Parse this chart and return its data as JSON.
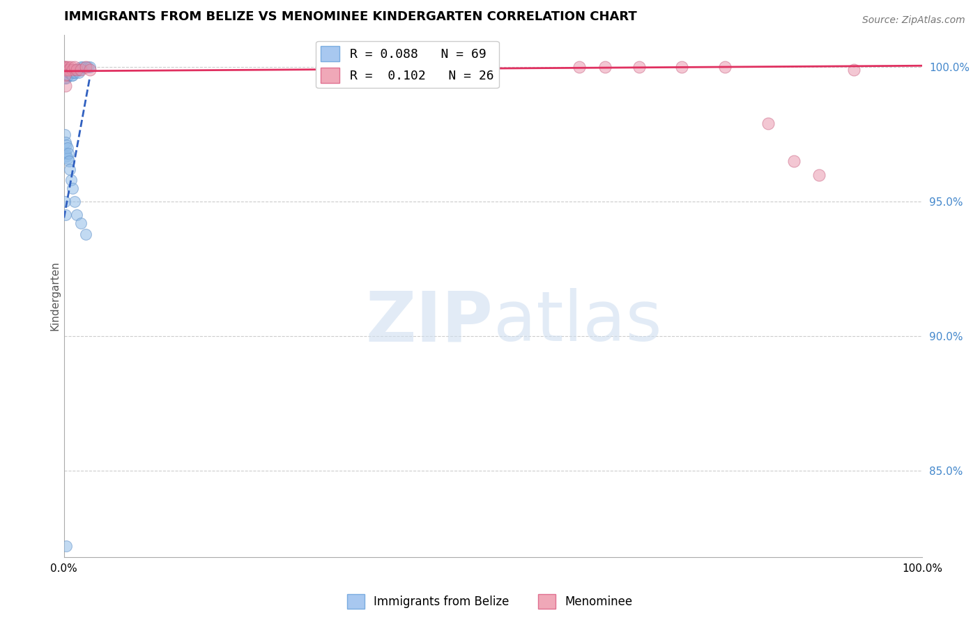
{
  "title": "IMMIGRANTS FROM BELIZE VS MENOMINEE KINDERGARTEN CORRELATION CHART",
  "source": "Source: ZipAtlas.com",
  "ylabel": "Kindergarten",
  "ylim": [
    0.818,
    1.012
  ],
  "xlim": [
    0.0,
    1.0
  ],
  "yticks": [
    1.0,
    0.95,
    0.9,
    0.85
  ],
  "ytick_labels": [
    "100.0%",
    "95.0%",
    "90.0%",
    "85.0%"
  ],
  "blue_color": "#90bce8",
  "blue_edge": "#6090c8",
  "pink_color": "#e890a8",
  "pink_edge": "#c86080",
  "blue_trend_color": "#3060c0",
  "pink_trend_color": "#e03060",
  "watermark_color": "#d0dff0",
  "grid_color": "#cccccc",
  "title_fontsize": 13,
  "blue_scatter_x": [
    0.0005,
    0.001,
    0.001,
    0.001,
    0.001,
    0.001,
    0.001,
    0.001,
    0.001,
    0.002,
    0.002,
    0.002,
    0.002,
    0.002,
    0.003,
    0.003,
    0.003,
    0.003,
    0.003,
    0.003,
    0.004,
    0.004,
    0.004,
    0.004,
    0.005,
    0.005,
    0.005,
    0.006,
    0.006,
    0.007,
    0.007,
    0.008,
    0.008,
    0.009,
    0.009,
    0.01,
    0.01,
    0.011,
    0.012,
    0.013,
    0.014,
    0.015,
    0.016,
    0.017,
    0.018,
    0.02,
    0.022,
    0.025,
    0.028,
    0.03,
    0.001,
    0.002,
    0.002,
    0.003,
    0.003,
    0.004,
    0.004,
    0.005,
    0.006,
    0.007,
    0.008,
    0.01,
    0.012,
    0.015,
    0.02,
    0.025,
    0.001,
    0.002,
    0.003
  ],
  "blue_scatter_y": [
    0.999,
    1.0,
    0.999,
    0.999,
    0.998,
    0.997,
    0.997,
    0.996,
    0.996,
    0.999,
    0.999,
    0.998,
    0.998,
    0.997,
    0.999,
    0.999,
    0.998,
    0.997,
    0.997,
    0.996,
    0.999,
    0.998,
    0.997,
    0.997,
    0.999,
    0.998,
    0.997,
    0.999,
    0.998,
    0.999,
    0.998,
    0.999,
    0.998,
    0.999,
    0.997,
    0.999,
    0.997,
    0.998,
    0.999,
    0.998,
    0.999,
    0.999,
    0.999,
    0.998,
    0.999,
    1.0,
    1.0,
    1.0,
    1.0,
    1.0,
    0.975,
    0.972,
    0.968,
    0.971,
    0.967,
    0.97,
    0.966,
    0.968,
    0.965,
    0.962,
    0.958,
    0.955,
    0.95,
    0.945,
    0.942,
    0.938,
    0.95,
    0.945,
    0.822
  ],
  "pink_scatter_x": [
    0.0005,
    0.001,
    0.002,
    0.003,
    0.004,
    0.005,
    0.006,
    0.008,
    0.01,
    0.012,
    0.015,
    0.02,
    0.025,
    0.03,
    0.35,
    0.6,
    0.63,
    0.67,
    0.72,
    0.77,
    0.82,
    0.85,
    0.88,
    0.92,
    0.001,
    0.002
  ],
  "pink_scatter_y": [
    1.0,
    1.0,
    0.999,
    1.0,
    0.999,
    1.0,
    0.999,
    1.0,
    0.999,
    1.0,
    0.999,
    0.999,
    1.0,
    0.999,
    1.0,
    1.0,
    1.0,
    1.0,
    1.0,
    1.0,
    0.979,
    0.965,
    0.96,
    0.999,
    0.997,
    0.993
  ],
  "blue_trend_x": [
    0.0,
    0.03
  ],
  "blue_trend_y": [
    0.944,
    0.996
  ],
  "pink_trend_x": [
    0.0,
    1.0
  ],
  "pink_trend_y": [
    0.9985,
    1.0005
  ]
}
